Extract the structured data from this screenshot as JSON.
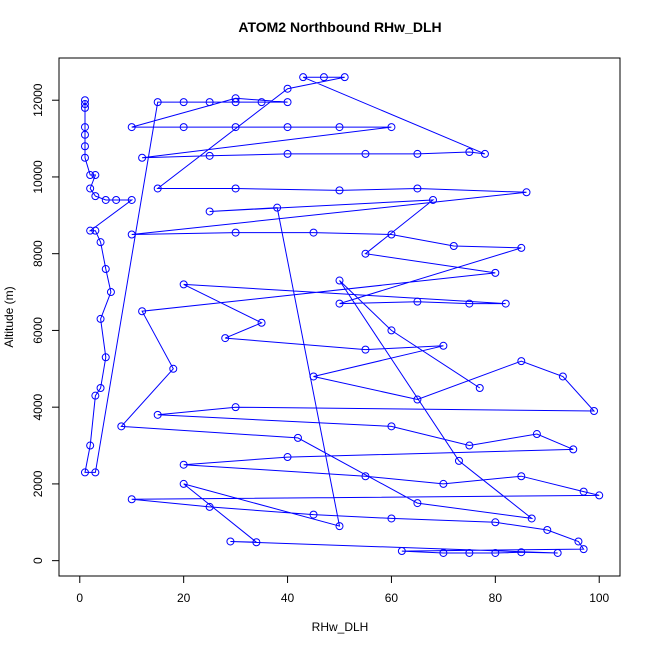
{
  "chart_data": {
    "type": "line",
    "title": "ATOM2 Northbound RHw_DLH",
    "x_label": "RHw_DLH",
    "y_label": "Altitude (m)",
    "color": "#0000ff",
    "markers": true,
    "xlim": [
      -4,
      104
    ],
    "ylim": [
      -400,
      13100
    ],
    "xticks": [
      0,
      20,
      40,
      60,
      80,
      100
    ],
    "yticks": [
      0,
      2000,
      4000,
      6000,
      8000,
      10000,
      12000
    ],
    "x": [
      1,
      1,
      1,
      1,
      1,
      1,
      1,
      2,
      3,
      2,
      3,
      5,
      7,
      10,
      2,
      3,
      4,
      5,
      6,
      4,
      5,
      4,
      3,
      2,
      1,
      3,
      15,
      20,
      25,
      30,
      35,
      40,
      30,
      10,
      20,
      30,
      40,
      50,
      60,
      12,
      25,
      40,
      55,
      65,
      75,
      78,
      43,
      47,
      51,
      40,
      15,
      30,
      50,
      65,
      86,
      10,
      30,
      45,
      60,
      72,
      85,
      50,
      65,
      75,
      82,
      20,
      35,
      28,
      55,
      70,
      45,
      65,
      85,
      93,
      99,
      30,
      15,
      60,
      75,
      88,
      95,
      40,
      20,
      55,
      70,
      85,
      97,
      100,
      10,
      25,
      45,
      60,
      80,
      90,
      96,
      97,
      62,
      70,
      75,
      80,
      85,
      92,
      29,
      34,
      20,
      50,
      38,
      25,
      68,
      55,
      80,
      12,
      18,
      8,
      42,
      65,
      87,
      73,
      50,
      60,
      77
    ],
    "values": [
      12000,
      11900,
      11800,
      11300,
      11100,
      10800,
      10500,
      10050,
      10050,
      9700,
      9500,
      9400,
      9400,
      9400,
      8600,
      8600,
      8300,
      7600,
      7000,
      6300,
      5300,
      4500,
      4300,
      3000,
      2300,
      2300,
      11950,
      11950,
      11950,
      11950,
      11950,
      11950,
      12050,
      11300,
      11300,
      11300,
      11300,
      11300,
      11300,
      10500,
      10550,
      10600,
      10600,
      10600,
      10650,
      10600,
      12600,
      12600,
      12600,
      12300,
      9700,
      9700,
      9650,
      9700,
      9600,
      8500,
      8550,
      8550,
      8500,
      8200,
      8150,
      6700,
      6750,
      6700,
      6700,
      7200,
      6200,
      5800,
      5500,
      5600,
      4800,
      4200,
      5200,
      4800,
      3900,
      4000,
      3800,
      3500,
      3000,
      3300,
      2900,
      2700,
      2500,
      2200,
      2000,
      2200,
      1800,
      1700,
      1600,
      1400,
      1200,
      1100,
      1000,
      800,
      500,
      300,
      250,
      200,
      200,
      200,
      220,
      200,
      500,
      480,
      2000,
      900,
      9200,
      9100,
      9400,
      8000,
      7500,
      6500,
      5000,
      3500,
      3200,
      1500,
      1100,
      2600,
      7300,
      6000,
      4500
    ]
  }
}
